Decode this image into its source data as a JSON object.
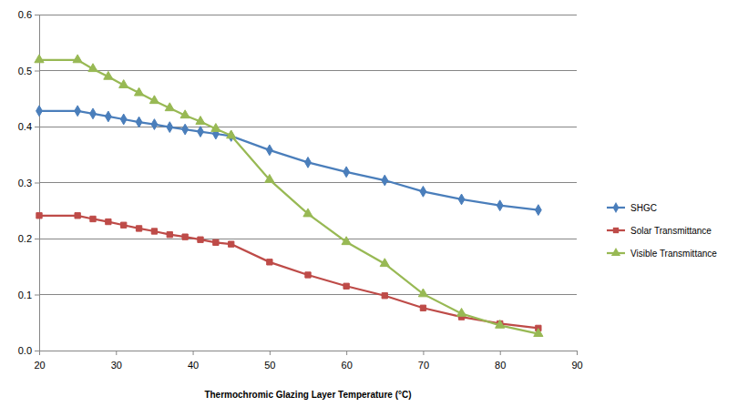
{
  "chart_data": {
    "type": "line",
    "x_label": "Thermochromic Glazing Layer Temperature (°C)",
    "x": [
      20,
      25,
      27,
      29,
      31,
      33,
      35,
      37,
      39,
      41,
      43,
      45,
      50,
      55,
      60,
      65,
      70,
      75,
      80,
      85
    ],
    "series": [
      {
        "name": "SHGC",
        "color": "#4a7ebb",
        "marker": "diamond",
        "values": [
          0.428,
          0.428,
          0.423,
          0.418,
          0.413,
          0.408,
          0.404,
          0.399,
          0.395,
          0.391,
          0.387,
          0.383,
          0.358,
          0.336,
          0.319,
          0.304,
          0.284,
          0.27,
          0.259,
          0.251
        ]
      },
      {
        "name": "Solar Transmittance",
        "color": "#be4b48",
        "marker": "square",
        "values": [
          0.241,
          0.241,
          0.235,
          0.23,
          0.224,
          0.218,
          0.213,
          0.207,
          0.203,
          0.198,
          0.193,
          0.19,
          0.158,
          0.135,
          0.115,
          0.098,
          0.076,
          0.06,
          0.048,
          0.04
        ]
      },
      {
        "name": "Visible Transmittance",
        "color": "#98b954",
        "marker": "triangle",
        "values": [
          0.519,
          0.519,
          0.503,
          0.489,
          0.474,
          0.46,
          0.446,
          0.433,
          0.42,
          0.409,
          0.396,
          0.384,
          0.305,
          0.244,
          0.194,
          0.155,
          0.101,
          0.066,
          0.045,
          0.03
        ]
      }
    ],
    "xlim": [
      20,
      90
    ],
    "xticks": [
      20,
      30,
      40,
      50,
      60,
      70,
      80,
      90
    ],
    "ylim": [
      0,
      0.6
    ],
    "yticks": [
      {
        "value": 0,
        "label": "0.0"
      },
      0.1,
      0.2,
      0.3,
      0.4,
      0.5,
      0.6
    ],
    "grid": true,
    "legend": "right"
  }
}
